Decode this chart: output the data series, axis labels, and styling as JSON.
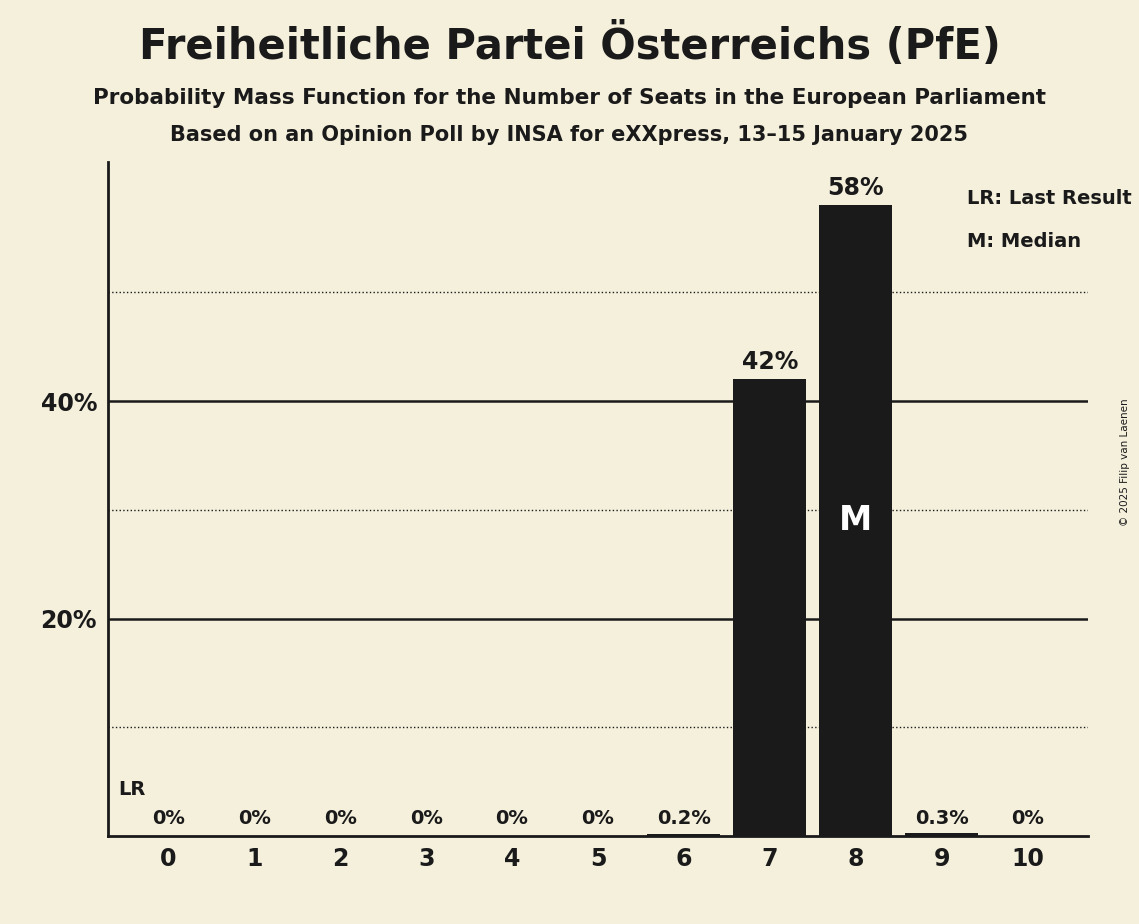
{
  "title": "Freiheitliche Partei Österreichs (PfE)",
  "subtitle1": "Probability Mass Function for the Number of Seats in the European Parliament",
  "subtitle2": "Based on an Opinion Poll by INSA for eXXpress, 13–15 January 2025",
  "categories": [
    0,
    1,
    2,
    3,
    4,
    5,
    6,
    7,
    8,
    9,
    10
  ],
  "values": [
    0.0,
    0.0,
    0.0,
    0.0,
    0.0,
    0.0,
    0.002,
    0.42,
    0.58,
    0.003,
    0.0
  ],
  "bar_color": "#1a1a1a",
  "background_color": "#f5f0dc",
  "text_color": "#1a1a1a",
  "median_bar": 8,
  "last_result_bar": 7,
  "dotted_grid_values": [
    10,
    30,
    50
  ],
  "solid_grid_values": [
    20,
    40
  ],
  "legend_lr": "LR: Last Result",
  "legend_m": "M: Median",
  "copyright": "© 2025 Filip van Laenen",
  "bar_labels": {
    "0": "0%",
    "1": "0%",
    "2": "0%",
    "3": "0%",
    "4": "0%",
    "5": "0%",
    "6": "0.2%",
    "7": "42%",
    "8": "58%",
    "9": "0.3%",
    "10": "0%"
  },
  "ylim": [
    0,
    0.62
  ],
  "figsize": [
    11.39,
    9.24
  ],
  "dpi": 100
}
